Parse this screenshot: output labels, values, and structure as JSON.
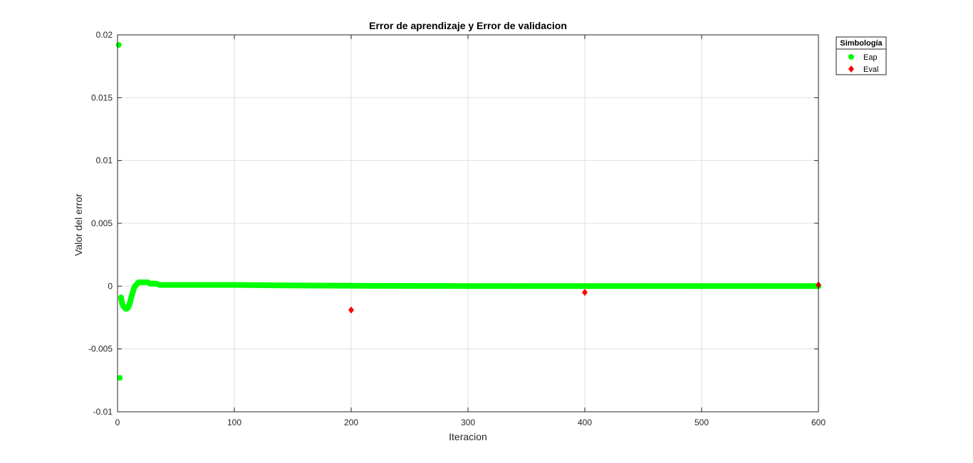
{
  "chart_data": {
    "type": "scatter",
    "title": "Error de aprendizaje y Error de validacion",
    "xlabel": "Iteracion",
    "ylabel": "Valor del error",
    "xlim": [
      0,
      600
    ],
    "ylim": [
      -0.01,
      0.02
    ],
    "xticks": [
      0,
      100,
      200,
      300,
      400,
      500,
      600
    ],
    "xtick_labels": [
      "0",
      "100",
      "200",
      "300",
      "400",
      "500",
      "600"
    ],
    "yticks": [
      -0.01,
      -0.005,
      0,
      0.005,
      0.01,
      0.015,
      0.02
    ],
    "ytick_labels": [
      "-0.01",
      "-0.005",
      "0",
      "0.005",
      "0.01",
      "0.015",
      "0.02"
    ],
    "grid": true,
    "legend": {
      "title": "Simbología",
      "placement": "outside-top-right"
    },
    "series": [
      {
        "name": "Eap",
        "marker": "circle",
        "color": "#00ff00",
        "x": [
          1,
          2,
          3,
          4,
          5,
          6,
          7,
          8,
          9,
          10,
          11,
          12,
          13,
          14,
          15,
          16,
          17,
          18,
          19,
          20,
          22,
          24,
          26,
          28,
          30,
          33,
          36,
          40,
          45,
          50,
          60,
          80,
          100,
          150,
          200,
          250,
          300,
          350,
          400,
          450,
          500,
          550,
          600
        ],
        "y": [
          0.0192,
          -0.0073,
          -0.0009,
          -0.0014,
          -0.0016,
          -0.0017,
          -0.0018,
          -0.0018,
          -0.0017,
          -0.0015,
          -0.0012,
          -0.0008,
          -0.0005,
          -0.0002,
          0.0,
          0.0001,
          0.0002,
          0.0003,
          0.0003,
          0.0003,
          0.0003,
          0.0003,
          0.0003,
          0.0002,
          0.0002,
          0.0002,
          0.0001,
          0.0001,
          0.0001,
          0.0001,
          0.0001,
          0.0001,
          0.0001,
          5e-05,
          3e-05,
          2e-05,
          1e-05,
          1e-05,
          1e-05,
          0.0,
          0.0,
          0.0,
          0.0
        ]
      },
      {
        "name": "Eval",
        "marker": "diamond",
        "color": "#ff0000",
        "x": [
          200,
          400,
          600
        ],
        "y": [
          -0.0019,
          -0.0005,
          0.0001
        ]
      }
    ]
  }
}
